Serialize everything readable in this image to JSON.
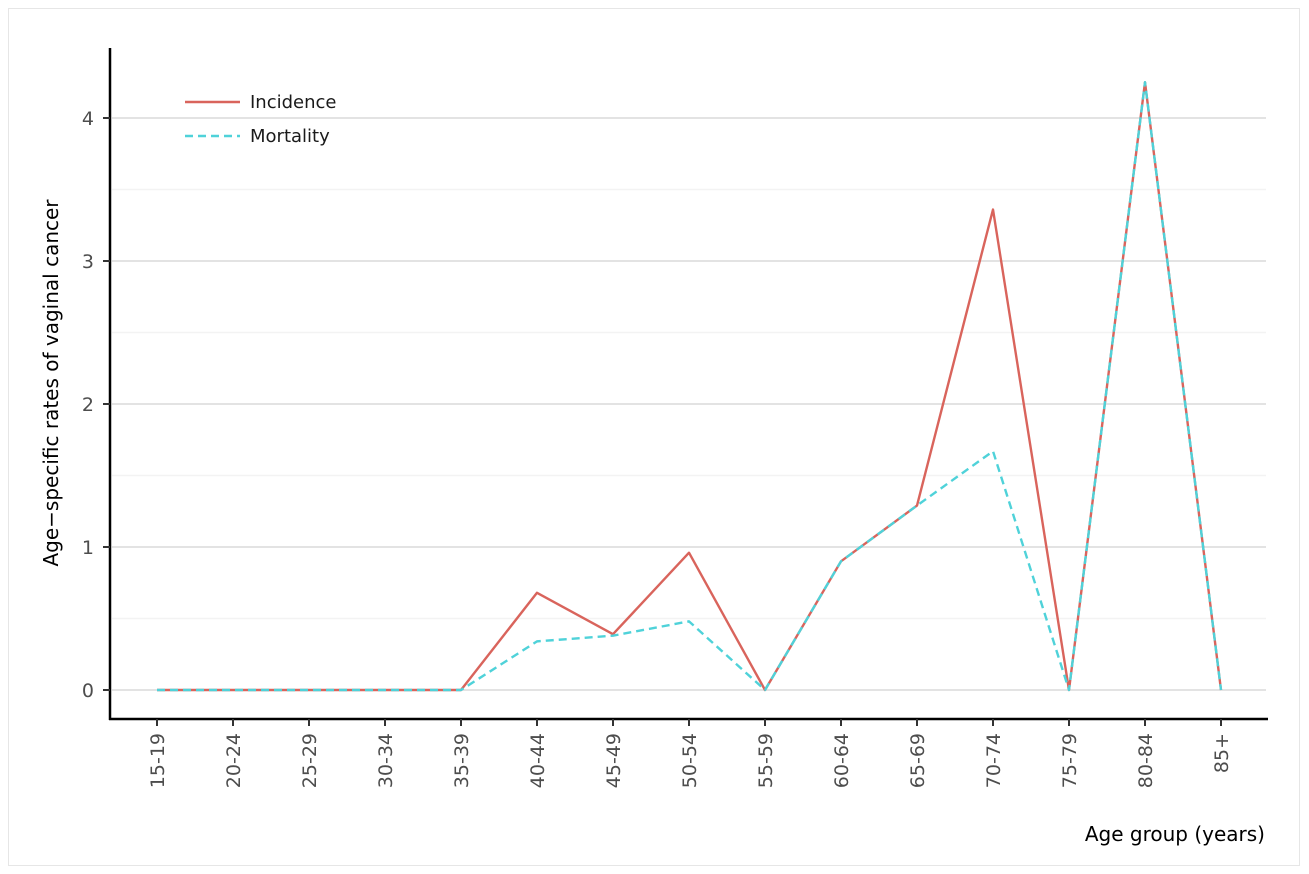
{
  "chart_data": {
    "type": "line",
    "xlabel": "Age group (years)",
    "ylabel": "Age−specific rates of vaginal cancer",
    "categories": [
      "15-19",
      "20-24",
      "25-29",
      "30-34",
      "35-39",
      "40-44",
      "45-49",
      "50-54",
      "55-59",
      "60-64",
      "65-69",
      "70-74",
      "75-79",
      "80-84",
      "85+"
    ],
    "ylim": [
      -0.2,
      4.5
    ],
    "yticks": [
      0,
      1,
      2,
      3,
      4
    ],
    "grid": true,
    "legend_position": "top-left",
    "series": [
      {
        "name": "Incidence",
        "color": "#d9645c",
        "dash": "solid",
        "values": [
          0,
          0,
          0,
          0,
          0,
          0.68,
          0.39,
          0.96,
          0,
          0.9,
          1.29,
          3.36,
          0,
          4.25,
          0
        ]
      },
      {
        "name": "Mortality",
        "color": "#4fd2d9",
        "dash": "dashed",
        "values": [
          0,
          0,
          0,
          0,
          0,
          0.34,
          0.38,
          0.48,
          0,
          0.9,
          1.29,
          1.67,
          0,
          4.25,
          0
        ]
      }
    ]
  }
}
